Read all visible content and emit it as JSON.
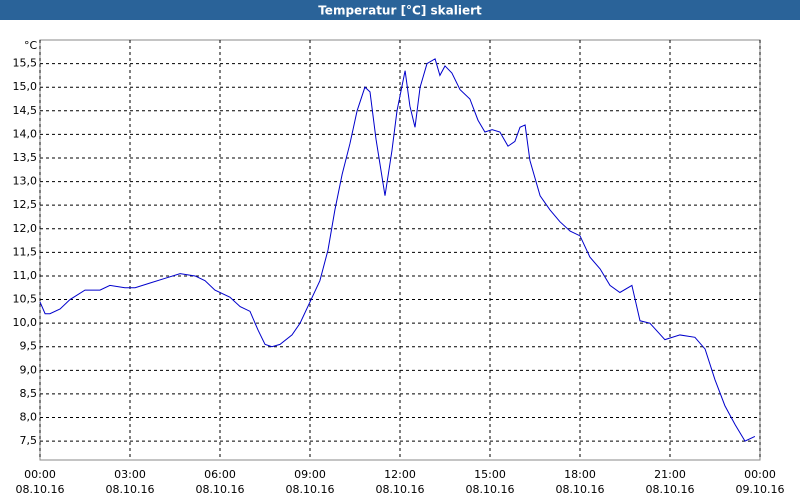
{
  "chart_data": {
    "type": "line",
    "title": "Temperatur [°C] skaliert",
    "y_unit": "°C",
    "x": [
      0,
      0.17,
      0.33,
      0.67,
      1.0,
      1.5,
      2.0,
      2.33,
      2.83,
      3.17,
      3.67,
      4.17,
      4.67,
      5.17,
      5.5,
      5.83,
      6.33,
      6.67,
      7.0,
      7.27,
      7.5,
      7.73,
      8.0,
      8.4,
      8.67,
      9.0,
      9.33,
      9.6,
      9.83,
      10.07,
      10.33,
      10.57,
      10.83,
      11.0,
      11.2,
      11.5,
      11.73,
      11.9,
      12.17,
      12.33,
      12.5,
      12.67,
      12.9,
      13.17,
      13.33,
      13.5,
      13.73,
      14.0,
      14.33,
      14.6,
      14.83,
      15.07,
      15.33,
      15.6,
      15.83,
      16.0,
      16.17,
      16.33,
      16.67,
      17.0,
      17.33,
      17.67,
      18.0,
      18.33,
      18.67,
      19.0,
      19.33,
      19.73,
      20.0,
      20.33,
      20.83,
      21.33,
      21.83,
      22.17,
      22.5,
      22.83,
      23.17,
      23.5,
      23.83
    ],
    "values": [
      10.45,
      10.2,
      10.2,
      10.3,
      10.5,
      10.7,
      10.7,
      10.8,
      10.75,
      10.75,
      10.85,
      10.95,
      11.05,
      11.0,
      10.9,
      10.7,
      10.55,
      10.35,
      10.25,
      9.85,
      9.55,
      9.5,
      9.55,
      9.75,
      10.0,
      10.45,
      10.9,
      11.55,
      12.4,
      13.15,
      13.8,
      14.5,
      15.0,
      14.9,
      13.9,
      12.7,
      13.65,
      14.5,
      15.35,
      14.6,
      14.15,
      15.0,
      15.5,
      15.6,
      15.25,
      15.45,
      15.3,
      14.95,
      14.75,
      14.3,
      14.05,
      14.1,
      14.05,
      13.75,
      13.85,
      14.15,
      14.2,
      13.45,
      12.7,
      12.4,
      12.15,
      11.95,
      11.85,
      11.4,
      11.15,
      10.8,
      10.65,
      10.8,
      10.05,
      10.0,
      9.65,
      9.75,
      9.7,
      9.45,
      8.8,
      8.25,
      7.85,
      7.5,
      7.6
    ],
    "color": "#0000cc",
    "grid": true,
    "xlim": [
      0,
      24
    ],
    "xticks": [
      {
        "value": 0,
        "label": "00:00"
      },
      {
        "value": 3,
        "label": "03:00"
      },
      {
        "value": 6,
        "label": "06:00"
      },
      {
        "value": 9,
        "label": "09:00"
      },
      {
        "value": 12,
        "label": "12:00"
      },
      {
        "value": 15,
        "label": "15:00"
      },
      {
        "value": 18,
        "label": "18:00"
      },
      {
        "value": 21,
        "label": "21:00"
      },
      {
        "value": 24,
        "label": "00:00"
      }
    ],
    "xtick_dates": [
      "08.10.16",
      "08.10.16",
      "08.10.16",
      "08.10.16",
      "08.10.16",
      "08.10.16",
      "08.10.16",
      "08.10.16",
      "09.10.16"
    ],
    "ylim": [
      7.1,
      16.0
    ],
    "yticks": [
      {
        "value": 7.5,
        "label": "7,5"
      },
      {
        "value": 8,
        "label": "8,0"
      },
      {
        "value": 8.5,
        "label": "8,5"
      },
      {
        "value": 9,
        "label": "9,0"
      },
      {
        "value": 9.5,
        "label": "9,5"
      },
      {
        "value": 10,
        "label": "10,0"
      },
      {
        "value": 10.5,
        "label": "10,5"
      },
      {
        "value": 11,
        "label": "11,0"
      },
      {
        "value": 11.5,
        "label": "11,5"
      },
      {
        "value": 12,
        "label": "12,0"
      },
      {
        "value": 12.5,
        "label": "12,5"
      },
      {
        "value": 13,
        "label": "13,0"
      },
      {
        "value": 13.5,
        "label": "13,5"
      },
      {
        "value": 14,
        "label": "14,0"
      },
      {
        "value": 14.5,
        "label": "14,5"
      },
      {
        "value": 15,
        "label": "15,0"
      },
      {
        "value": 15.5,
        "label": "15,5"
      }
    ]
  }
}
